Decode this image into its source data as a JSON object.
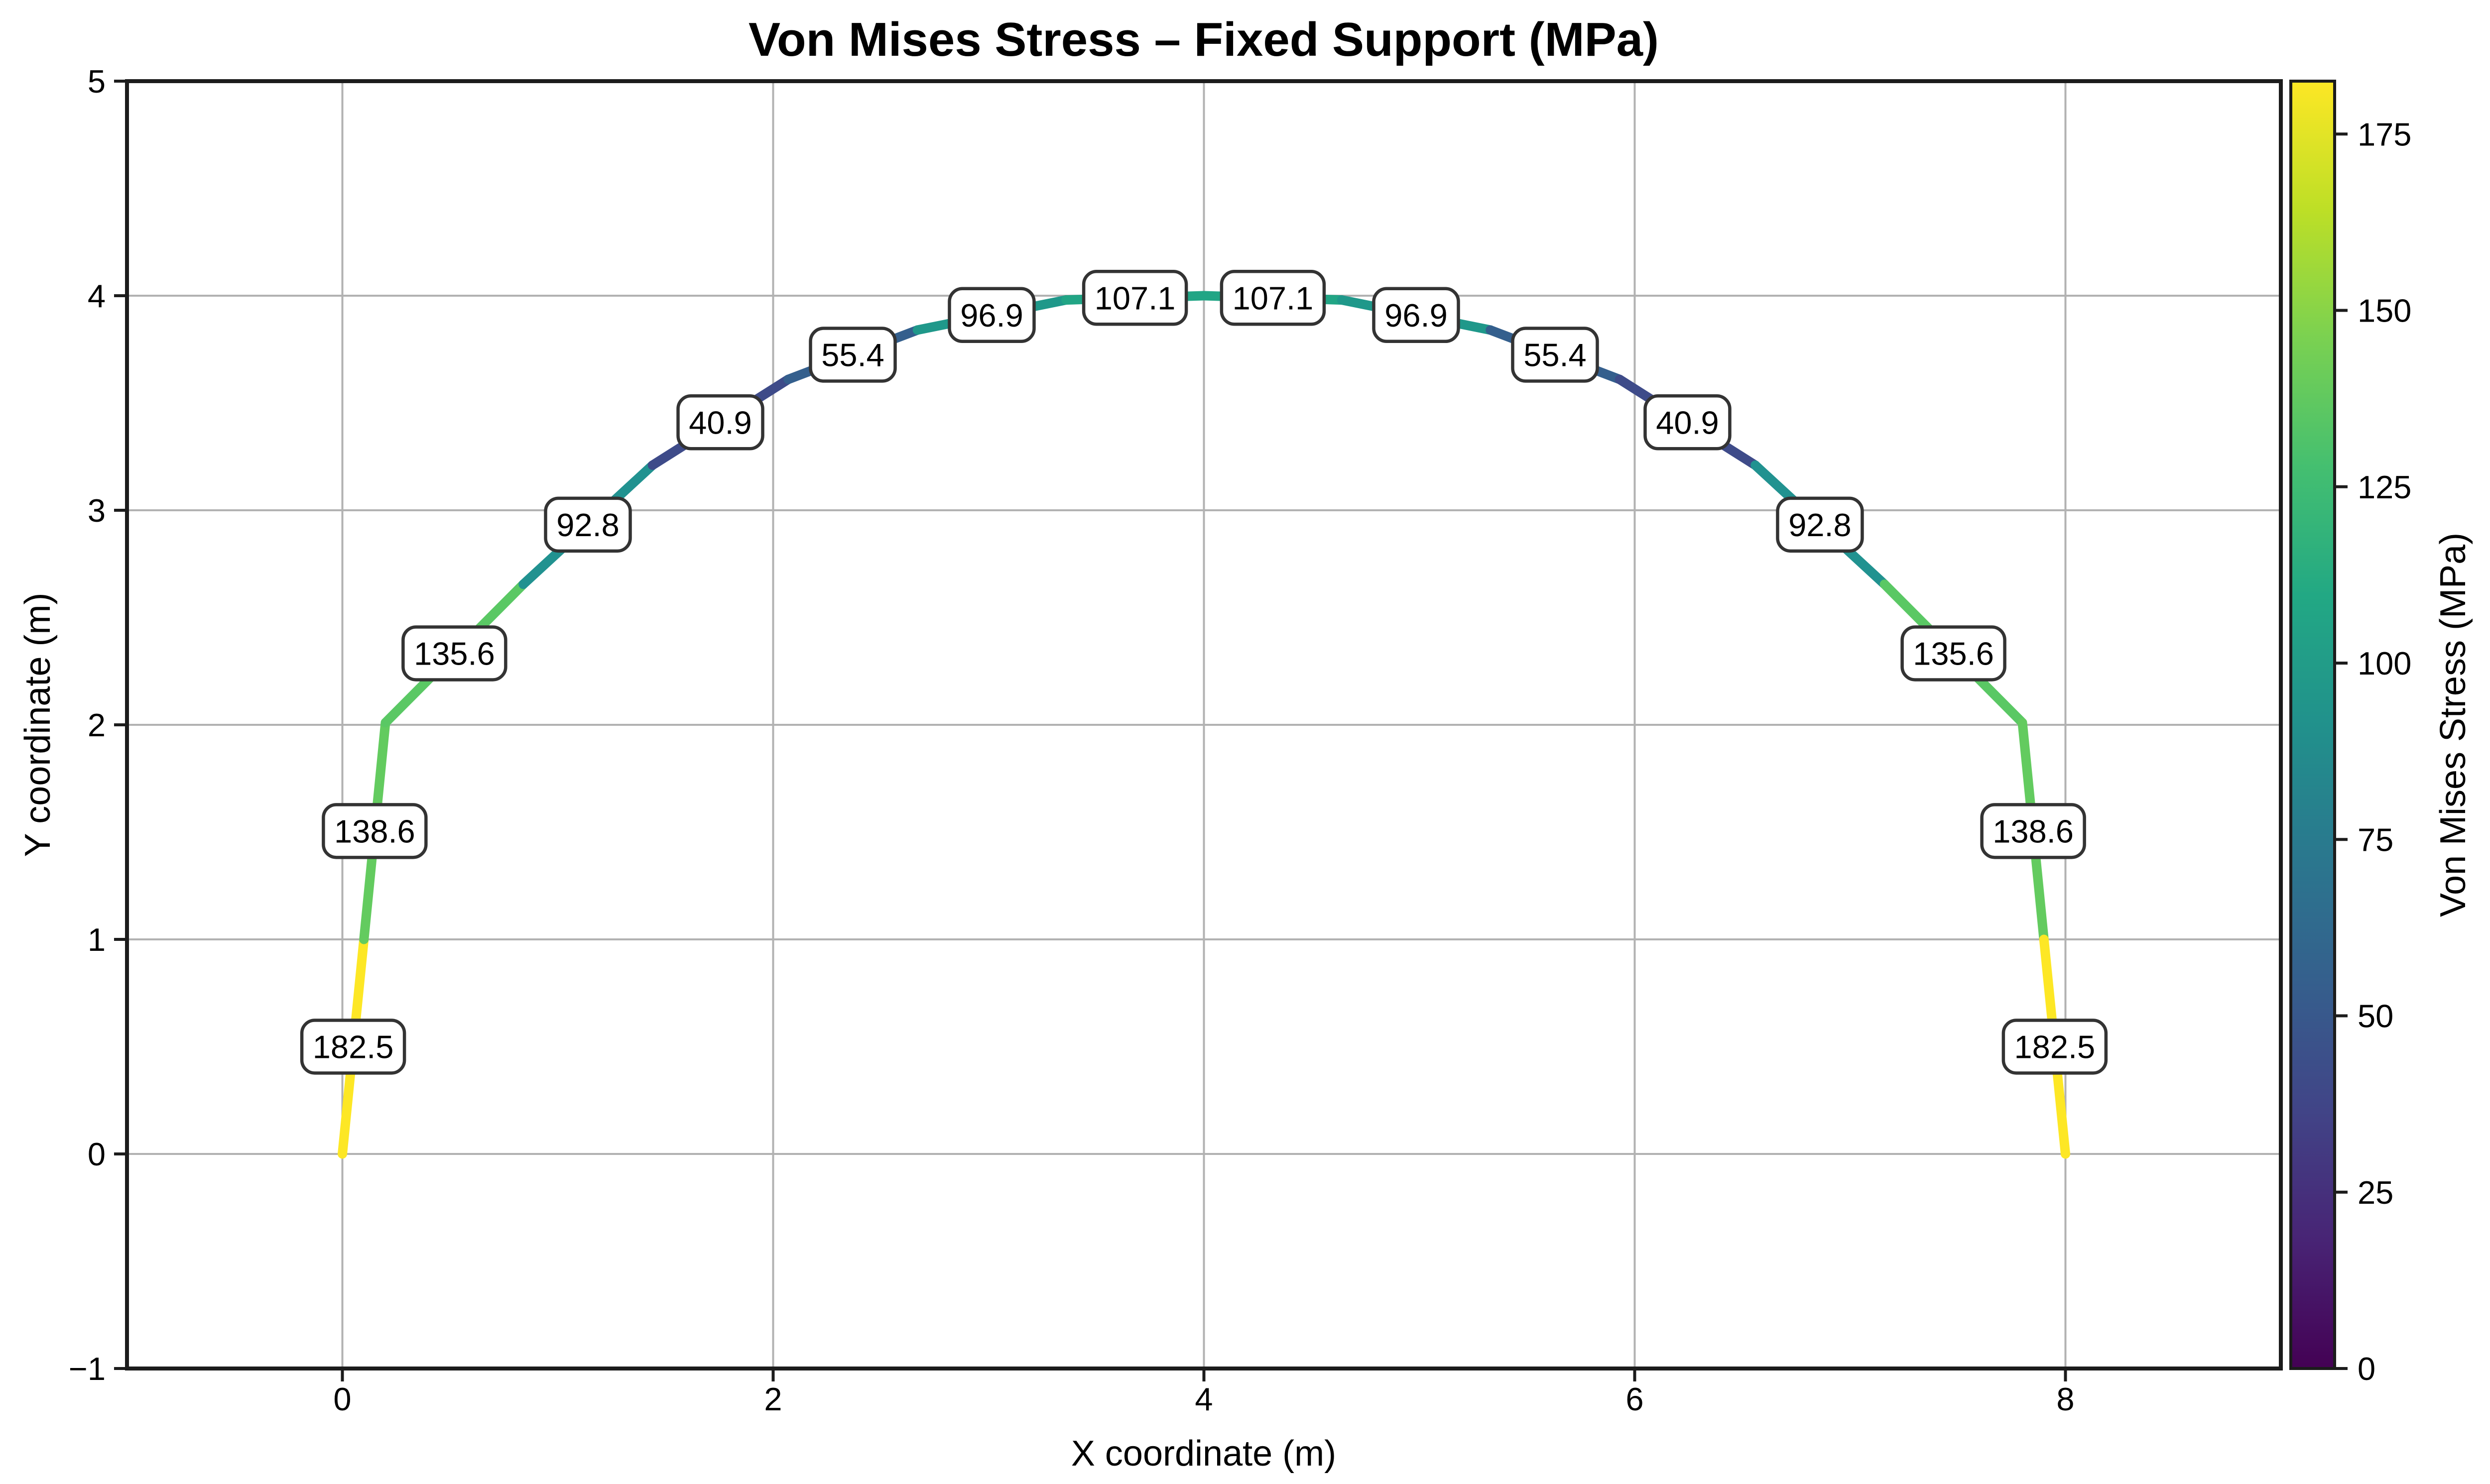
{
  "chart_data": {
    "type": "line",
    "title": "Von Mises Stress – Fixed Support (MPa)",
    "xlabel": "X coordinate (m)",
    "ylabel": "Y coordinate (m)",
    "xlim": [
      -1,
      9
    ],
    "ylim": [
      -1,
      5
    ],
    "grid": true,
    "equal_aspect": true,
    "xticks": {
      "values": [
        0,
        2,
        4,
        6,
        8
      ],
      "labels": [
        "0",
        "2",
        "4",
        "6",
        "8"
      ]
    },
    "yticks": {
      "values": [
        -1,
        0,
        1,
        2,
        3,
        4,
        5
      ],
      "labels": [
        "−1",
        "0",
        "1",
        "2",
        "3",
        "4",
        "5"
      ]
    },
    "description": "Arch structure discretized into 16 frame elements; each element is colored by its Von Mises stress (viridis colormap) and annotated with its stress value in MPa.",
    "nodes": [
      [
        0.0,
        0.0
      ],
      [
        0.1,
        1.0
      ],
      [
        0.2,
        2.01
      ],
      [
        0.84,
        2.655
      ],
      [
        1.44,
        3.21
      ],
      [
        2.07,
        3.61
      ],
      [
        2.67,
        3.84
      ],
      [
        3.36,
        3.98
      ],
      [
        4.0,
        4.0
      ],
      [
        4.64,
        3.98
      ],
      [
        5.33,
        3.84
      ],
      [
        5.93,
        3.61
      ],
      [
        6.56,
        3.21
      ],
      [
        7.16,
        2.655
      ],
      [
        7.8,
        2.01
      ],
      [
        7.9,
        1.0
      ],
      [
        8.0,
        0.0
      ]
    ],
    "elements": [
      {
        "value": 182.5,
        "label": "182.5",
        "color": "#fde725",
        "mid": [
          0.05,
          0.5
        ]
      },
      {
        "value": 138.6,
        "label": "138.6",
        "color": "#63cb5f",
        "mid": [
          0.15,
          1.505
        ]
      },
      {
        "value": 135.6,
        "label": "135.6",
        "color": "#5ac864",
        "mid": [
          0.52,
          2.333
        ]
      },
      {
        "value": 92.8,
        "label": "92.8",
        "color": "#219290",
        "mid": [
          1.14,
          2.933
        ]
      },
      {
        "value": 40.9,
        "label": "40.9",
        "color": "#3e4b89",
        "mid": [
          1.755,
          3.41
        ]
      },
      {
        "value": 55.4,
        "label": "55.4",
        "color": "#345f8d",
        "mid": [
          2.37,
          3.725
        ]
      },
      {
        "value": 96.9,
        "label": "96.9",
        "color": "#1f988a",
        "mid": [
          3.015,
          3.91
        ]
      },
      {
        "value": 107.1,
        "label": "107.1",
        "color": "#21a585",
        "mid": [
          3.68,
          3.99
        ]
      },
      {
        "value": 107.1,
        "label": "107.1",
        "color": "#21a585",
        "mid": [
          4.32,
          3.99
        ]
      },
      {
        "value": 96.9,
        "label": "96.9",
        "color": "#1f988a",
        "mid": [
          4.985,
          3.91
        ]
      },
      {
        "value": 55.4,
        "label": "55.4",
        "color": "#345f8d",
        "mid": [
          5.63,
          3.725
        ]
      },
      {
        "value": 40.9,
        "label": "40.9",
        "color": "#3e4b89",
        "mid": [
          6.245,
          3.41
        ]
      },
      {
        "value": 92.8,
        "label": "92.8",
        "color": "#219290",
        "mid": [
          6.86,
          2.933
        ]
      },
      {
        "value": 135.6,
        "label": "135.6",
        "color": "#5ac864",
        "mid": [
          7.48,
          2.333
        ]
      },
      {
        "value": 138.6,
        "label": "138.6",
        "color": "#63cb5f",
        "mid": [
          7.85,
          1.505
        ]
      },
      {
        "value": 182.5,
        "label": "182.5",
        "color": "#fde725",
        "mid": [
          7.95,
          0.5
        ]
      }
    ],
    "colorbar": {
      "label": "Von Mises Stress (MPa)",
      "vmin": 0,
      "vmax": 182.5,
      "colormap": "viridis",
      "ticks": {
        "values": [
          0,
          25,
          50,
          75,
          100,
          125,
          150,
          175
        ],
        "labels": [
          "0",
          "25",
          "50",
          "75",
          "100",
          "125",
          "150",
          "175"
        ]
      },
      "gradient": [
        {
          "t": 0.0,
          "c": "#440154"
        },
        {
          "t": 0.1,
          "c": "#482475"
        },
        {
          "t": 0.2,
          "c": "#414487"
        },
        {
          "t": 0.3,
          "c": "#355f8d"
        },
        {
          "t": 0.4,
          "c": "#2a788e"
        },
        {
          "t": 0.5,
          "c": "#21918c"
        },
        {
          "t": 0.6,
          "c": "#22a884"
        },
        {
          "t": 0.7,
          "c": "#44bf70"
        },
        {
          "t": 0.8,
          "c": "#7ad151"
        },
        {
          "t": 0.9,
          "c": "#bddf26"
        },
        {
          "t": 1.0,
          "c": "#fde725"
        }
      ]
    },
    "style_colors": {
      "grid": "#b2b2b2",
      "spine": "#1c1c1c",
      "annotation_border": "#333333",
      "annotation_fill": "#ffffff",
      "background": "#ffffff"
    }
  }
}
